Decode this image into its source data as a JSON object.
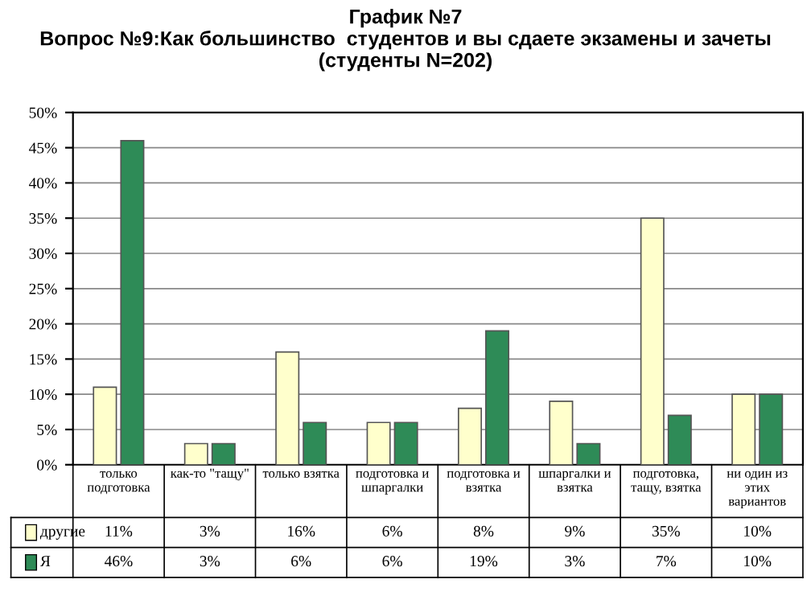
{
  "chart_data": {
    "type": "bar",
    "title": "График №7\nВопрос №9:Как большинство  студентов и вы сдаете экзамены и зачеты\n(студенты N=202)",
    "categories": [
      "только подготовка",
      "как-то \"тащу\"",
      "только взятка",
      "подготовка и шпаргалки",
      "подготовка и взятка",
      "шпаргалки и взятка",
      "подготовка, тащу, взятка",
      "ни один из этих вариантов"
    ],
    "series": [
      {
        "name": "другие",
        "color": "#ffffcc",
        "values": [
          11,
          3,
          16,
          6,
          8,
          9,
          35,
          10
        ],
        "value_labels": [
          "11%",
          "3%",
          "16%",
          "6%",
          "8%",
          "9%",
          "35%",
          "10%"
        ]
      },
      {
        "name": "Я",
        "color": "#2e8b57",
        "values": [
          46,
          3,
          6,
          6,
          19,
          3,
          7,
          10
        ],
        "value_labels": [
          "46%",
          "3%",
          "6%",
          "6%",
          "19%",
          "3%",
          "7%",
          "10%"
        ]
      }
    ],
    "ylim": [
      0,
      50
    ],
    "yticks": [
      {
        "value": 0,
        "label": "0%"
      },
      {
        "value": 5,
        "label": "5%"
      },
      {
        "value": 10,
        "label": "10%"
      },
      {
        "value": 15,
        "label": "15%"
      },
      {
        "value": 20,
        "label": "20%"
      },
      {
        "value": 25,
        "label": "25%"
      },
      {
        "value": 30,
        "label": "30%"
      },
      {
        "value": 35,
        "label": "35%"
      },
      {
        "value": 40,
        "label": "40%"
      },
      {
        "value": 45,
        "label": "45%"
      },
      {
        "value": 50,
        "label": "50%"
      }
    ],
    "grid": "y",
    "legend": "bottom"
  }
}
